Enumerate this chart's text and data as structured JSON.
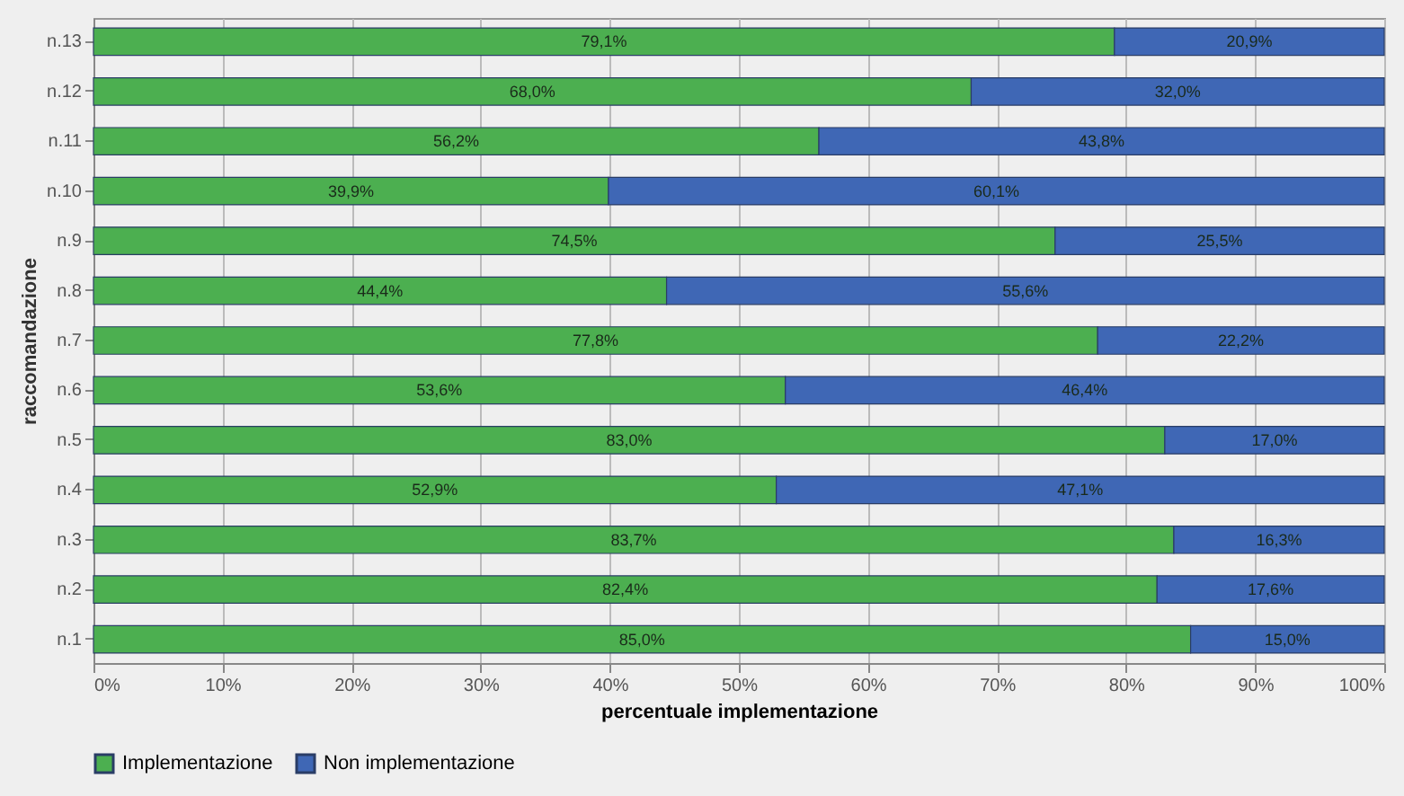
{
  "chart_data": {
    "type": "bar",
    "orientation": "horizontal",
    "stacked": true,
    "xlabel": "percentuale implementazione",
    "ylabel": "raccomandazione",
    "categories": [
      "n.13",
      "n.12",
      "n.11",
      "n.10",
      "n.9",
      "n.8",
      "n.7",
      "n.6",
      "n.5",
      "n.4",
      "n.3",
      "n.2",
      "n.1"
    ],
    "series": [
      {
        "name": "Implementazione",
        "color": "#4caf50",
        "values": [
          79.1,
          68.0,
          56.2,
          39.9,
          74.5,
          44.4,
          77.8,
          53.6,
          83.0,
          52.9,
          83.7,
          82.4,
          85.0
        ],
        "value_labels": [
          "79,1%",
          "68,0%",
          "56,2%",
          "39,9%",
          "74,5%",
          "44,4%",
          "77,8%",
          "53,6%",
          "83,0%",
          "52,9%",
          "83,7%",
          "82,4%",
          "85,0%"
        ]
      },
      {
        "name": "Non implementazione",
        "color": "#3f67b5",
        "values": [
          20.9,
          32.0,
          43.8,
          60.1,
          25.5,
          55.6,
          22.2,
          46.4,
          17.0,
          47.1,
          16.3,
          17.6,
          15.0
        ],
        "value_labels": [
          "20,9%",
          "32,0%",
          "43,8%",
          "60,1%",
          "25,5%",
          "55,6%",
          "22,2%",
          "46,4%",
          "17,0%",
          "47,1%",
          "16,3%",
          "17,6%",
          "15,0%"
        ]
      }
    ],
    "xlim": [
      0,
      100
    ],
    "xticks": [
      {
        "value": 0,
        "label": "0%"
      },
      {
        "value": 10,
        "label": "10%"
      },
      {
        "value": 20,
        "label": "20%"
      },
      {
        "value": 30,
        "label": "30%"
      },
      {
        "value": 40,
        "label": "40%"
      },
      {
        "value": 50,
        "label": "50%"
      },
      {
        "value": 60,
        "label": "60%"
      },
      {
        "value": 70,
        "label": "70%"
      },
      {
        "value": 80,
        "label": "80%"
      },
      {
        "value": 90,
        "label": "90%"
      },
      {
        "value": 100,
        "label": "100%"
      }
    ],
    "grid": "x",
    "legend": "bottom"
  }
}
